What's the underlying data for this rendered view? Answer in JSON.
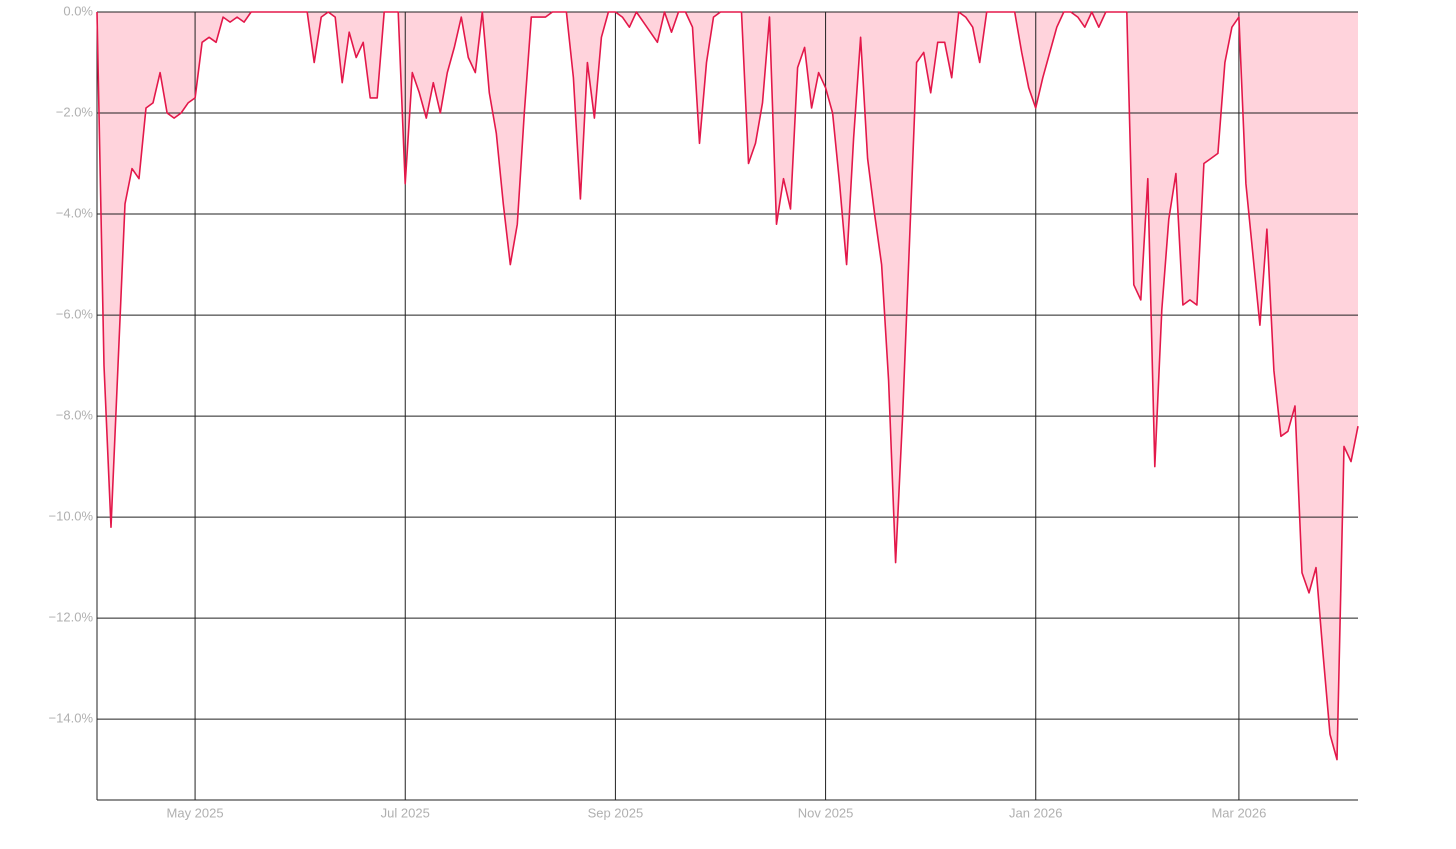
{
  "chart_data": {
    "type": "area",
    "categories": [
      null,
      null,
      null,
      null,
      null,
      null,
      null,
      null,
      null,
      null,
      null,
      null,
      null,
      null,
      "May 2025",
      null,
      null,
      null,
      null,
      null,
      null,
      null,
      null,
      null,
      null,
      null,
      null,
      null,
      null,
      null,
      null,
      null,
      null,
      null,
      null,
      null,
      null,
      null,
      null,
      null,
      null,
      null,
      null,
      null,
      "Jul 2025",
      null,
      null,
      null,
      null,
      null,
      null,
      null,
      null,
      null,
      null,
      null,
      null,
      null,
      null,
      null,
      null,
      null,
      null,
      null,
      null,
      null,
      null,
      null,
      null,
      null,
      null,
      null,
      null,
      null,
      "Sep 2025",
      null,
      null,
      null,
      null,
      null,
      null,
      null,
      null,
      null,
      null,
      null,
      null,
      null,
      null,
      null,
      null,
      null,
      null,
      null,
      null,
      null,
      null,
      null,
      null,
      null,
      null,
      null,
      null,
      null,
      "Nov 2025",
      null,
      null,
      null,
      null,
      null,
      null,
      null,
      null,
      null,
      null,
      null,
      null,
      null,
      null,
      null,
      null,
      null,
      null,
      null,
      null,
      null,
      null,
      null,
      null,
      null,
      null,
      null,
      null,
      null,
      "Jan 2026",
      null,
      null,
      null,
      null,
      null,
      null,
      null,
      null,
      null,
      null,
      null,
      null,
      null,
      null,
      null,
      null,
      null,
      null,
      null,
      null,
      null,
      null,
      null,
      null,
      null,
      null,
      null,
      null,
      "Mar 2026",
      null,
      null,
      null,
      null,
      null,
      null,
      null,
      null,
      null,
      null,
      null,
      null,
      null,
      null,
      null,
      null,
      null
    ],
    "series": [
      {
        "color": "#e3184a",
        "fill_color": "#ffd3dc",
        "values": [
          0,
          -7.0,
          -10.2,
          -7.0,
          -3.8,
          -3.1,
          -3.3,
          -1.9,
          -1.8,
          -1.2,
          -2.0,
          -2.1,
          -2.0,
          -1.8,
          -1.7,
          -0.6,
          -0.5,
          -0.6,
          -0.1,
          -0.2,
          -0.1,
          -0.2,
          0,
          0,
          0,
          0,
          0,
          0,
          0,
          0,
          0,
          -1.0,
          -0.1,
          0,
          -0.1,
          -1.4,
          -0.4,
          -0.9,
          -0.6,
          -1.7,
          -1.7,
          0,
          0,
          0,
          -3.4,
          -1.2,
          -1.6,
          -2.1,
          -1.4,
          -2.0,
          -1.2,
          -0.7,
          -0.1,
          -0.9,
          -1.2,
          0,
          -1.6,
          -2.4,
          -3.8,
          -5.0,
          -4.2,
          -2.0,
          -0.1,
          -0.1,
          -0.1,
          0,
          0,
          0,
          -1.3,
          -3.7,
          -1.0,
          -2.1,
          -0.5,
          0,
          0,
          -0.1,
          -0.3,
          0,
          -0.2,
          -0.4,
          -0.6,
          0,
          -0.4,
          0,
          0,
          -0.3,
          -2.6,
          -1.0,
          -0.1,
          0,
          0,
          0,
          0,
          -3.0,
          -2.6,
          -1.8,
          -0.1,
          -4.2,
          -3.3,
          -3.9,
          -1.1,
          -0.7,
          -1.9,
          -1.2,
          -1.5,
          -2.0,
          -3.4,
          -5.0,
          -2.5,
          -0.5,
          -2.9,
          -4.0,
          -5.0,
          -7.3,
          -10.9,
          -8.0,
          -4.5,
          -1.0,
          -0.8,
          -1.6,
          -0.6,
          -0.6,
          -1.3,
          0,
          -0.1,
          -0.3,
          -1.0,
          0,
          0,
          0,
          0,
          0,
          -0.8,
          -1.5,
          -1.9,
          -1.3,
          -0.8,
          -0.3,
          0,
          0,
          -0.1,
          -0.3,
          0,
          -0.3,
          0,
          0,
          0,
          0,
          -5.4,
          -5.7,
          -3.3,
          -9.0,
          -5.9,
          -4.1,
          -3.2,
          -5.8,
          -5.7,
          -5.8,
          -3.0,
          -2.9,
          -2.8,
          -1.0,
          -0.3,
          -0.1,
          -3.4,
          -4.8,
          -6.2,
          -4.3,
          -7.1,
          -8.4,
          -8.3,
          -7.8,
          -11.1,
          -11.5,
          -11.0,
          -12.7,
          -14.3,
          -14.8,
          -8.6,
          -8.9,
          -8.2
        ]
      }
    ],
    "ylim": [
      -15.6,
      0
    ],
    "yticks": [
      {
        "value": 0,
        "label": "0.0%"
      },
      {
        "value": -2,
        "label": "−2.0%"
      },
      {
        "value": -4,
        "label": "−4.0%"
      },
      {
        "value": -6,
        "label": "−6.0%"
      },
      {
        "value": -8,
        "label": "−8.0%"
      },
      {
        "value": -10,
        "label": "−10.0%"
      },
      {
        "value": -12,
        "label": "−12.0%"
      },
      {
        "value": -14,
        "label": "−14.0%"
      }
    ],
    "grid": true
  }
}
